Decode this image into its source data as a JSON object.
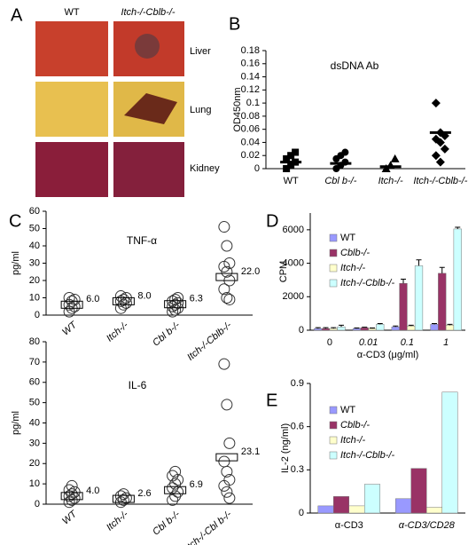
{
  "panel_a": {
    "label": "A",
    "columns": [
      "WT",
      "Itch-/-Cblb-/-"
    ],
    "rows": [
      "Liver",
      "Lung",
      "Kidney"
    ]
  },
  "chart_data": [
    {
      "type": "dot",
      "label": "B",
      "title": "dsDNA Ab",
      "ylabel": "OD450nm",
      "categories": [
        "WT",
        "Cbl b-/-",
        "Itch-/-",
        "Itch-/-Cblb-/-"
      ],
      "points": [
        [
          0,
          0.005,
          0.01,
          0.015,
          0.02,
          0.025
        ],
        [
          0,
          0.005,
          0.01,
          0.015,
          0.02,
          0.025
        ],
        [
          0,
          0.005,
          0.015
        ],
        [
          0.1,
          0.055,
          0.05,
          0.045,
          0.04,
          0.03,
          0.02,
          0.01
        ]
      ],
      "means": [
        0.01,
        0.008,
        0.003,
        0.055
      ],
      "markers": [
        "square",
        "circle",
        "triangle",
        "diamond"
      ],
      "mean_style": "line",
      "ylim": [
        0,
        0.18
      ],
      "yticks": [
        0,
        0.02,
        0.04,
        0.06,
        0.08,
        0.1,
        0.12,
        0.14,
        0.16,
        0.18
      ]
    },
    {
      "type": "dot",
      "label": "C",
      "title": "TNF-α",
      "ylabel": "pg/ml",
      "categories": [
        "WT",
        "Itch-/-",
        "Cbl b-/-",
        "Itch-/-Cblb-/-"
      ],
      "points": [
        [
          2,
          4,
          5,
          6,
          8,
          9,
          10
        ],
        [
          4,
          6,
          7,
          8,
          9,
          10,
          11
        ],
        [
          2,
          3,
          4,
          5,
          6,
          7,
          8,
          9,
          10
        ],
        [
          51,
          40,
          30,
          28,
          25,
          20,
          15,
          10,
          9
        ]
      ],
      "means": [
        6,
        8,
        6.3,
        22
      ],
      "mean_labels": [
        "6.0",
        "8.0",
        "6.3",
        "22.0"
      ],
      "marker": "open-circle",
      "mean_style": "box",
      "rotate_labels": true,
      "ylim": [
        0,
        60
      ],
      "yticks": [
        0,
        10,
        20,
        30,
        40,
        50,
        60
      ]
    },
    {
      "type": "dot",
      "title": "IL-6",
      "ylabel": "pg/ml",
      "categories": [
        "WT",
        "Itch-/-",
        "Cbl b-/-",
        "Itch-/-Cbl b-/-"
      ],
      "points": [
        [
          1,
          2,
          3,
          4,
          5,
          6,
          7,
          9
        ],
        [
          1,
          2,
          3,
          4,
          5
        ],
        [
          2,
          4,
          6,
          8,
          10,
          12,
          14,
          16
        ],
        [
          69,
          49,
          30,
          21,
          16,
          12,
          9,
          6,
          3
        ]
      ],
      "means": [
        4,
        2.6,
        6.9,
        23.1
      ],
      "mean_labels": [
        "4.0",
        "2.6",
        "6.9",
        "23.1"
      ],
      "marker": "open-circle",
      "mean_style": "box",
      "rotate_labels": true,
      "ylim": [
        0,
        80
      ],
      "yticks": [
        0,
        10,
        20,
        30,
        40,
        50,
        60,
        70,
        80
      ]
    },
    {
      "type": "bar",
      "label": "D",
      "ylabel": "CPM",
      "xlabel": "α-CD3  (μg/ml)",
      "categories": [
        "0",
        "0.01",
        "0.1",
        "1"
      ],
      "series": [
        {
          "name": "WT",
          "color": "#9999ff",
          "values": [
            100,
            100,
            200,
            350
          ],
          "errors": [
            50,
            30,
            50,
            50
          ]
        },
        {
          "name": "Cblb-/-",
          "color": "#993366",
          "values": [
            100,
            150,
            2800,
            3400
          ],
          "errors": [
            50,
            30,
            250,
            350
          ]
        },
        {
          "name": "Itch-/-",
          "color": "#ffffcc",
          "values": [
            100,
            100,
            250,
            300
          ],
          "errors": [
            50,
            30,
            50,
            50
          ]
        },
        {
          "name": "Itch-/-Cblb-/-",
          "color": "#ccffff",
          "values": [
            200,
            350,
            3850,
            6050
          ],
          "errors": [
            100,
            50,
            350,
            100
          ]
        }
      ],
      "ylim": [
        0,
        7000
      ],
      "yticks": [
        0,
        2000,
        4000,
        6000
      ]
    },
    {
      "type": "bar",
      "label": "E",
      "ylabel": "IL-2 (ng/ml)",
      "categories": [
        "α-CD3",
        "α-CD3/CD28"
      ],
      "series": [
        {
          "name": "WT",
          "color": "#9999ff",
          "values": [
            0.05,
            0.1
          ]
        },
        {
          "name": "Cblb-/-",
          "color": "#993366",
          "values": [
            0.115,
            0.31
          ]
        },
        {
          "name": "Itch-/-",
          "color": "#ffffcc",
          "values": [
            0.05,
            0.04
          ]
        },
        {
          "name": "Itch-/-Cblb-/-",
          "color": "#ccffff",
          "values": [
            0.2,
            0.84
          ]
        }
      ],
      "ylim": [
        0,
        0.9
      ],
      "yticks": [
        0,
        0.3,
        0.6,
        0.9
      ]
    }
  ]
}
